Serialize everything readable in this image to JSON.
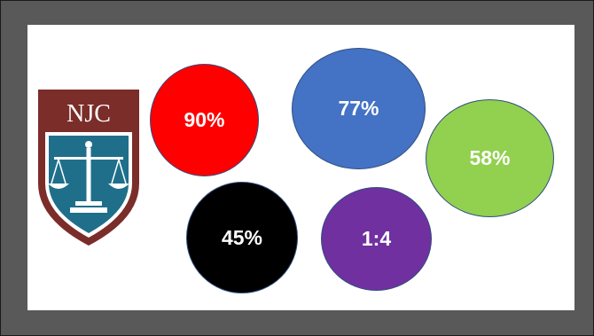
{
  "logo": {
    "text": "NJC"
  },
  "stats": [
    {
      "label": "90%",
      "color": "#ff0000"
    },
    {
      "label": "77%",
      "color": "#4472c4"
    },
    {
      "label": "58%",
      "color": "#92d050"
    },
    {
      "label": "45%",
      "color": "#000000"
    },
    {
      "label": "1:4",
      "color": "#7030a0"
    }
  ]
}
